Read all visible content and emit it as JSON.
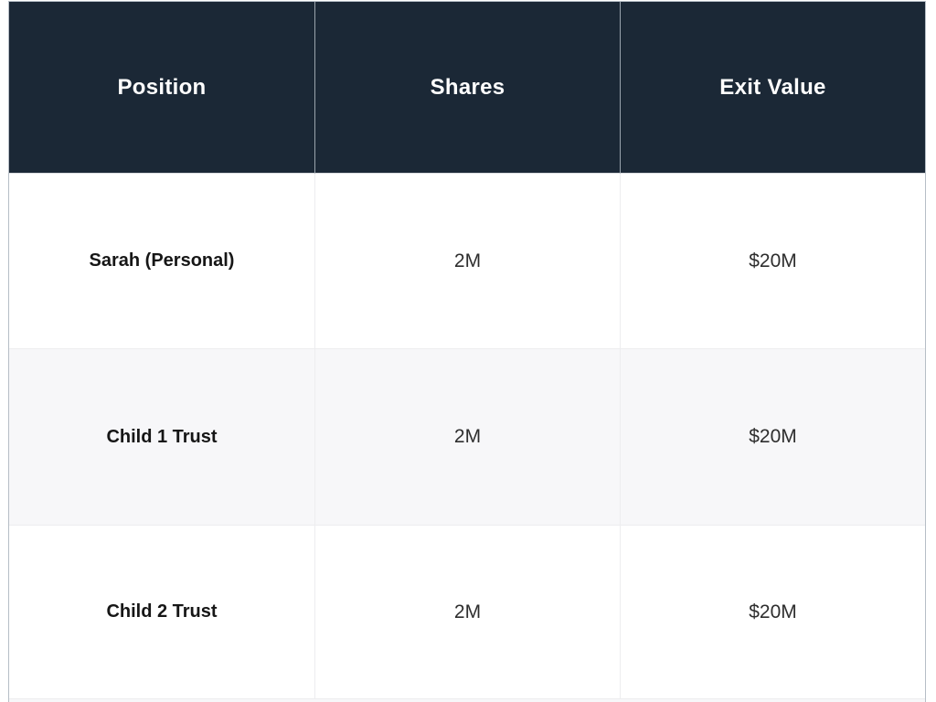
{
  "chart_data": {
    "type": "table",
    "title": "",
    "columns": [
      "Position",
      "Shares",
      "Exit Value"
    ],
    "rows": [
      [
        "Sarah (Personal)",
        "2M",
        "$20M"
      ],
      [
        "Child 1 Trust",
        "2M",
        "$20M"
      ],
      [
        "Child 2 Trust",
        "2M",
        "$20M"
      ]
    ],
    "layout": {
      "striping": "alternate rows light gray",
      "alignment": "all cells centered",
      "header_style": "dark navy bar with white bold text"
    }
  },
  "colors": {
    "header_bg": "#1b2836",
    "header_text": "#ffffff",
    "row_bg": "#ffffff",
    "row_alt_bg": "#f7f7f9",
    "body_text": "#2e2e2e",
    "label_text": "#161616",
    "grid_line": "#ededef",
    "outer_border": "#b6bec6"
  }
}
